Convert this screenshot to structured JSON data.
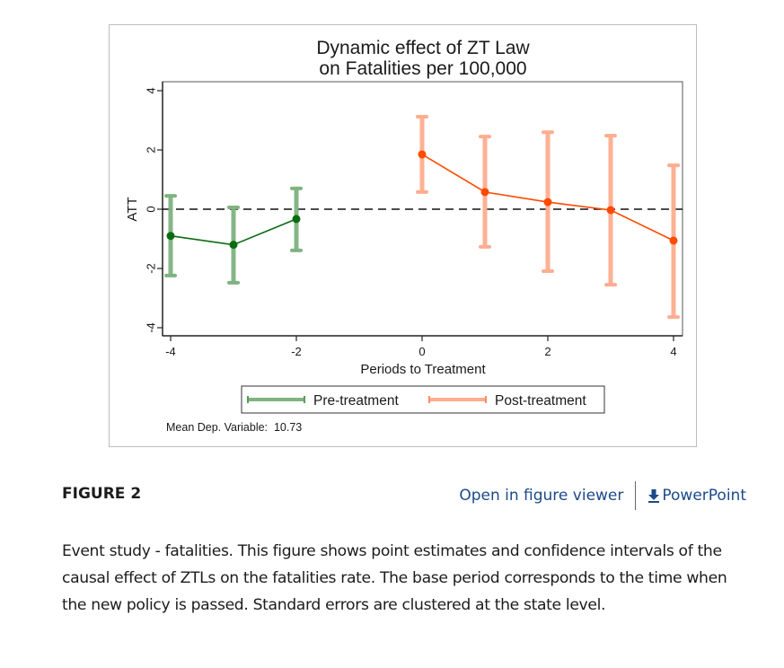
{
  "chart_data": {
    "type": "line",
    "title": [
      "Dynamic effect of ZT Law",
      "on Fatalities per 100,000"
    ],
    "xlabel": "Periods to Treatment",
    "ylabel": "ATT",
    "xlim": [
      -4.15,
      4.15
    ],
    "ylim": [
      -4.2,
      4.0
    ],
    "xticks": [
      -4,
      -2,
      0,
      2,
      4
    ],
    "xtick_labels": [
      "-4",
      "-2",
      "0",
      "2",
      "4"
    ],
    "yticks": [
      4,
      2,
      0,
      -2,
      -4
    ],
    "ytick_labels": [
      "4",
      "2",
      "0",
      "-2",
      "-4"
    ],
    "reference_line": {
      "y": 0,
      "style": "dashed",
      "color": "#000000"
    },
    "grid": false,
    "legend_position": "bottom",
    "series": [
      {
        "name": "Pre-treatment",
        "color": "#0b6b12",
        "ci_color": "#7fb380",
        "x": [
          -4,
          -3,
          -2
        ],
        "values": [
          -0.9,
          -1.2,
          -0.33
        ],
        "ci_upper": [
          0.45,
          0.06,
          0.7
        ],
        "ci_lower": [
          -2.24,
          -2.48,
          -1.39
        ]
      },
      {
        "name": "Post-treatment",
        "color": "#ff4a00",
        "ci_color": "#ffad8f",
        "x": [
          0,
          1,
          2,
          3,
          4
        ],
        "values": [
          1.85,
          0.58,
          0.24,
          -0.03,
          -1.06
        ],
        "ci_upper": [
          3.12,
          2.45,
          2.6,
          2.48,
          1.48
        ],
        "ci_lower": [
          0.58,
          -1.27,
          -2.09,
          -2.55,
          -3.64
        ]
      }
    ],
    "annotations": [
      {
        "text": "Mean Dep. Variable:  10.73",
        "position": "bottom-left"
      }
    ]
  },
  "figure": {
    "label": "FIGURE 2",
    "open_viewer_label": "Open in figure viewer",
    "powerpoint_label": "PowerPoint",
    "caption": "Event study - fatalities. This figure shows point estimates and confidence intervals of the causal effect of ZTLs on the fatalities rate. The base period corresponds to the time when the new policy is passed. Standard errors are clustered at the state level."
  }
}
